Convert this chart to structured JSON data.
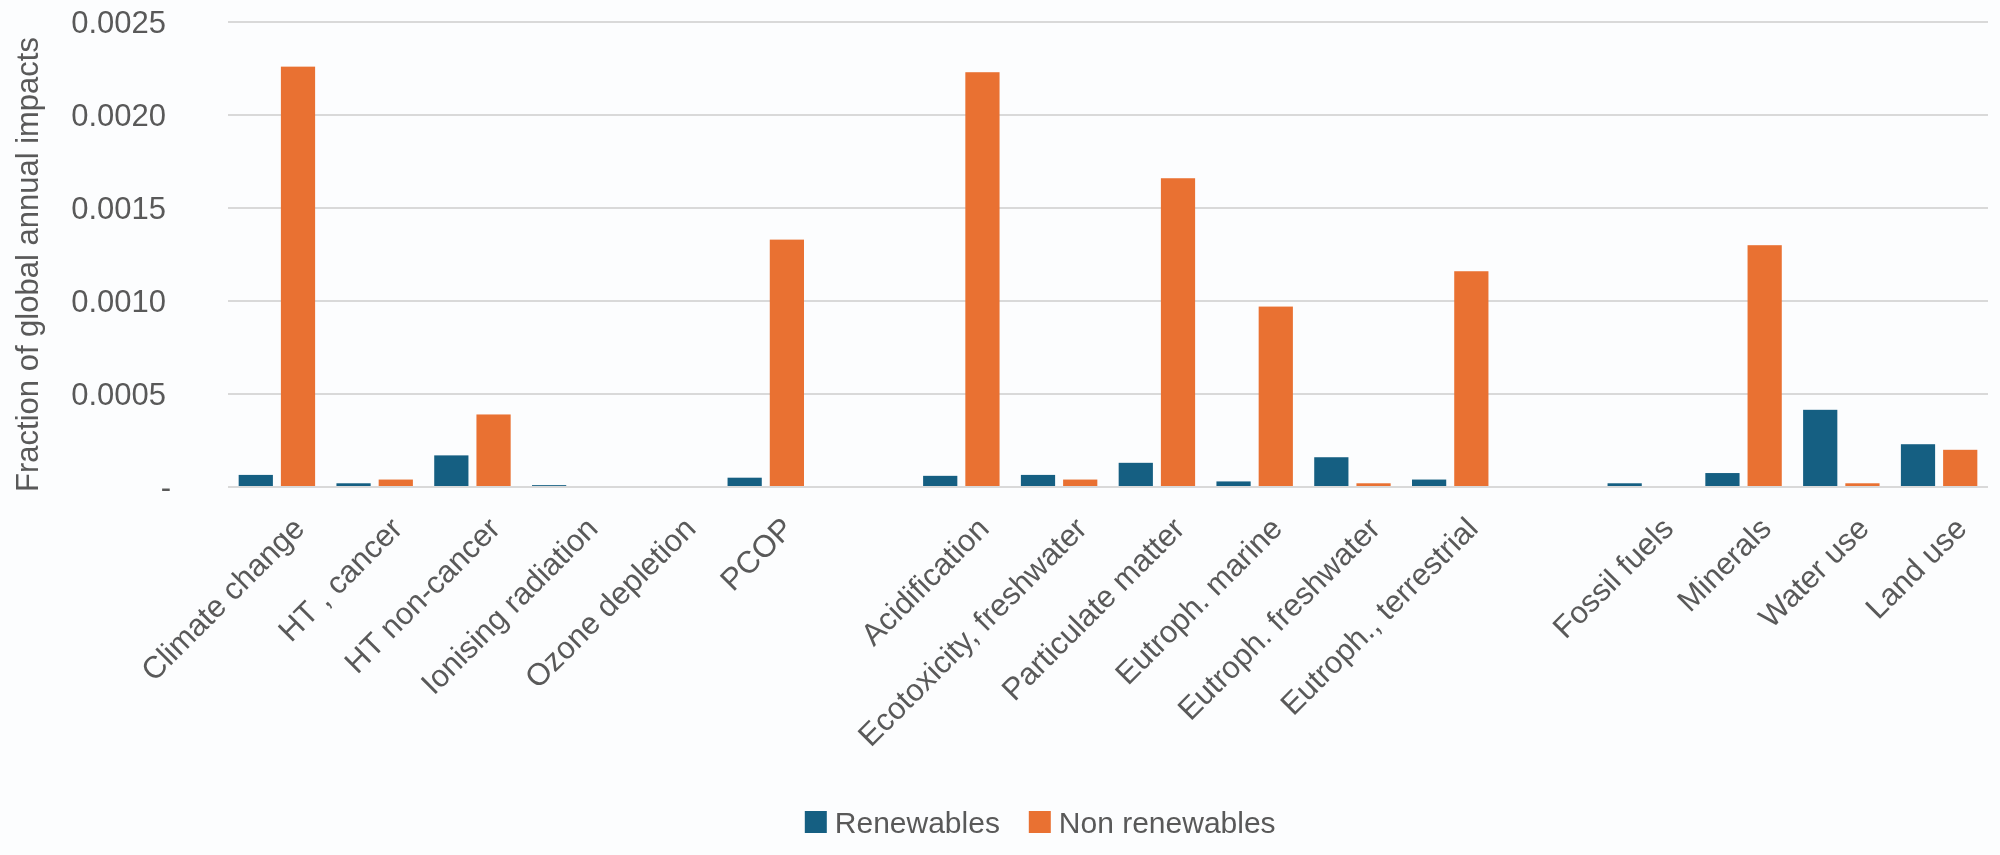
{
  "chart_data": {
    "type": "bar",
    "ylabel": "Fraction of global annual impacts",
    "categories": [
      "Climate change",
      "HT , cancer",
      "HT non-cancer",
      "Ionising radiation",
      "Ozone depletion",
      "PCOP",
      null,
      "Acidification",
      "Ecotoxicity, freshwater",
      "Particulate matter",
      "Eutroph. marine",
      "Eutroph. freshwater",
      "Eutroph., terrestrial",
      null,
      "Fossil fuels",
      "Minerals",
      "Water use",
      "Land use"
    ],
    "series": [
      {
        "name": "Renewables",
        "color": "#155f82",
        "values": [
          6.5e-05,
          2e-05,
          0.00017,
          1e-05,
          0,
          5e-05,
          null,
          6e-05,
          6.5e-05,
          0.00013,
          3e-05,
          0.00016,
          4e-05,
          null,
          2e-05,
          7.5e-05,
          0.000415,
          0.00023
        ]
      },
      {
        "name": "Non renewables",
        "color": "#e97132",
        "values": [
          0.00226,
          4e-05,
          0.00039,
          0,
          0,
          0.00133,
          null,
          0.00223,
          4e-05,
          0.00166,
          0.00097,
          2e-05,
          0.00116,
          null,
          0,
          0.0013,
          2e-05,
          0.0002
        ]
      }
    ],
    "ylim": [
      0,
      0.0025
    ],
    "yticks": [
      {
        "value": 0,
        "label": "-"
      },
      {
        "value": 0.0005,
        "label": "0.0005"
      },
      {
        "value": 0.001,
        "label": "0.0010"
      },
      {
        "value": 0.0015,
        "label": "0.0015"
      },
      {
        "value": 0.002,
        "label": "0.0020"
      },
      {
        "value": 0.0025,
        "label": "0.0025"
      }
    ],
    "grid": "y",
    "legend": "bottom"
  }
}
